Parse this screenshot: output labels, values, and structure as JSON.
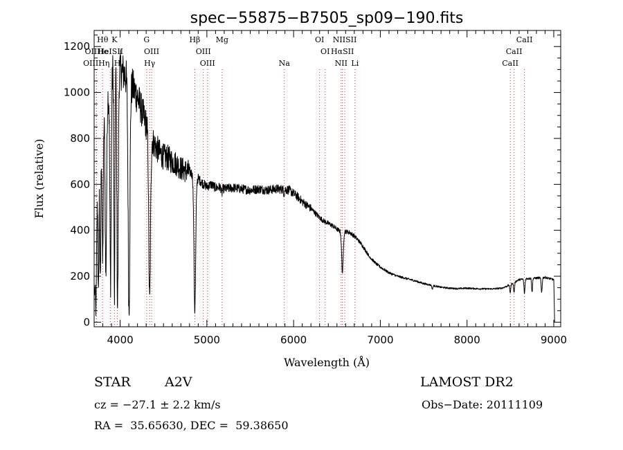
{
  "chart_data": {
    "type": "line",
    "title": "spec−55875−B7505_sp09−190.fits",
    "xlabel": "Wavelength (Å)",
    "ylabel": "Flux (relative)",
    "xlim": [
      3700,
      9080
    ],
    "ylim": [
      -20,
      1270
    ],
    "xticks": [
      4000,
      5000,
      6000,
      7000,
      8000,
      9000
    ],
    "yticks": [
      0,
      200,
      400,
      600,
      800,
      1000,
      1200
    ],
    "grid": false,
    "series_color": "#000000",
    "line_marker_color": "#cc3333",
    "continuum": [
      [
        3705,
        120
      ],
      [
        3730,
        500
      ],
      [
        3760,
        830
      ],
      [
        3800,
        900
      ],
      [
        3850,
        960
      ],
      [
        3900,
        1080
      ],
      [
        3950,
        1150
      ],
      [
        4000,
        1100
      ],
      [
        4050,
        1080
      ],
      [
        4100,
        1040
      ],
      [
        4150,
        1020
      ],
      [
        4200,
        980
      ],
      [
        4250,
        920
      ],
      [
        4300,
        860
      ],
      [
        4350,
        810
      ],
      [
        4400,
        770
      ],
      [
        4450,
        740
      ],
      [
        4500,
        720
      ],
      [
        4550,
        715
      ],
      [
        4600,
        700
      ],
      [
        4650,
        690
      ],
      [
        4700,
        670
      ],
      [
        4750,
        660
      ],
      [
        4800,
        655
      ],
      [
        4850,
        640
      ],
      [
        4900,
        625
      ],
      [
        4950,
        605
      ],
      [
        5000,
        590
      ],
      [
        5050,
        600
      ],
      [
        5100,
        585
      ],
      [
        5150,
        588
      ],
      [
        5200,
        580
      ],
      [
        5300,
        585
      ],
      [
        5400,
        580
      ],
      [
        5500,
        575
      ],
      [
        5600,
        580
      ],
      [
        5700,
        575
      ],
      [
        5800,
        580
      ],
      [
        5900,
        578
      ],
      [
        5950,
        575
      ],
      [
        6000,
        560
      ],
      [
        6050,
        545
      ],
      [
        6100,
        525
      ],
      [
        6150,
        510
      ],
      [
        6200,
        495
      ],
      [
        6250,
        475
      ],
      [
        6300,
        455
      ],
      [
        6350,
        440
      ],
      [
        6400,
        430
      ],
      [
        6450,
        420
      ],
      [
        6500,
        405
      ],
      [
        6550,
        392
      ],
      [
        6600,
        395
      ],
      [
        6650,
        390
      ],
      [
        6700,
        375
      ],
      [
        6750,
        355
      ],
      [
        6800,
        330
      ],
      [
        6850,
        300
      ],
      [
        6900,
        275
      ],
      [
        6950,
        255
      ],
      [
        7000,
        240
      ],
      [
        7100,
        215
      ],
      [
        7200,
        200
      ],
      [
        7300,
        190
      ],
      [
        7400,
        180
      ],
      [
        7500,
        168
      ],
      [
        7600,
        160
      ],
      [
        7700,
        152
      ],
      [
        7800,
        148
      ],
      [
        7900,
        146
      ],
      [
        8000,
        148
      ],
      [
        8100,
        146
      ],
      [
        8200,
        145
      ],
      [
        8300,
        145
      ],
      [
        8400,
        148
      ],
      [
        8450,
        155
      ],
      [
        8500,
        165
      ],
      [
        8550,
        175
      ],
      [
        8600,
        185
      ],
      [
        8700,
        190
      ],
      [
        8800,
        192
      ],
      [
        8900,
        195
      ],
      [
        8950,
        190
      ],
      [
        9000,
        185
      ],
      [
        9010,
        0
      ]
    ],
    "absorption": [
      [
        3722,
        60,
        6
      ],
      [
        3750,
        110,
        6
      ],
      [
        3771,
        150,
        6
      ],
      [
        3798,
        260,
        7
      ],
      [
        3835,
        200,
        8
      ],
      [
        3889,
        180,
        8
      ],
      [
        3934,
        100,
        6
      ],
      [
        3970,
        70,
        8
      ],
      [
        4102,
        55,
        10
      ],
      [
        4340,
        85,
        10
      ],
      [
        4861,
        50,
        10
      ],
      [
        5172,
        560,
        6
      ],
      [
        5890,
        560,
        5
      ],
      [
        6280,
        520,
        5
      ],
      [
        6300,
        500,
        5
      ],
      [
        6563,
        215,
        9
      ],
      [
        6870,
        285,
        5
      ],
      [
        7600,
        145,
        6
      ],
      [
        8498,
        130,
        6
      ],
      [
        8542,
        130,
        6
      ],
      [
        8662,
        125,
        6
      ],
      [
        8750,
        130,
        5
      ],
      [
        8860,
        130,
        6
      ]
    ],
    "lines": [
      {
        "name": "Hθ",
        "x": 3798,
        "row": 0
      },
      {
        "name": "K",
        "x": 3934,
        "row": 0
      },
      {
        "name": "G",
        "x": 4305,
        "row": 0
      },
      {
        "name": "Hβ",
        "x": 4861,
        "row": 0
      },
      {
        "name": "Mg",
        "x": 5175,
        "row": 0
      },
      {
        "name": "OI",
        "x": 6300,
        "row": 0
      },
      {
        "name": "NIISII",
        "x": 6590,
        "row": 0
      },
      {
        "name": "CaII",
        "x": 8662,
        "row": 0
      },
      {
        "name": "OIIHe",
        "x": 3727,
        "row": 1
      },
      {
        "name": "HeISII",
        "x": 3889,
        "row": 1
      },
      {
        "name": "OIII",
        "x": 4363,
        "row": 1
      },
      {
        "name": "OIII",
        "x": 4959,
        "row": 1
      },
      {
        "name": "OI",
        "x": 6364,
        "row": 1
      },
      {
        "name": "HαSII",
        "x": 6563,
        "row": 1
      },
      {
        "name": "CaII",
        "x": 8542,
        "row": 1
      },
      {
        "name": "OIIIHη",
        "x": 3726,
        "row": 2
      },
      {
        "name": "H",
        "x": 3968,
        "row": 2
      },
      {
        "name": "Hγ",
        "x": 4340,
        "row": 2
      },
      {
        "name": "OIII",
        "x": 5007,
        "row": 2
      },
      {
        "name": "Na",
        "x": 5893,
        "row": 2
      },
      {
        "name": "NII",
        "x": 6548,
        "row": 2
      },
      {
        "name": "Li",
        "x": 6708,
        "row": 2
      },
      {
        "name": "CaII",
        "x": 8498,
        "row": 2
      }
    ]
  },
  "info": {
    "object": "STAR",
    "subclass": "A2V",
    "survey": "LAMOST DR2",
    "cz": "cz = −27.1 ± 2.2 km/s",
    "obsdate": "Obs−Date: 20111109",
    "coords": "RA =  35.65630, DEC =  59.38650"
  }
}
